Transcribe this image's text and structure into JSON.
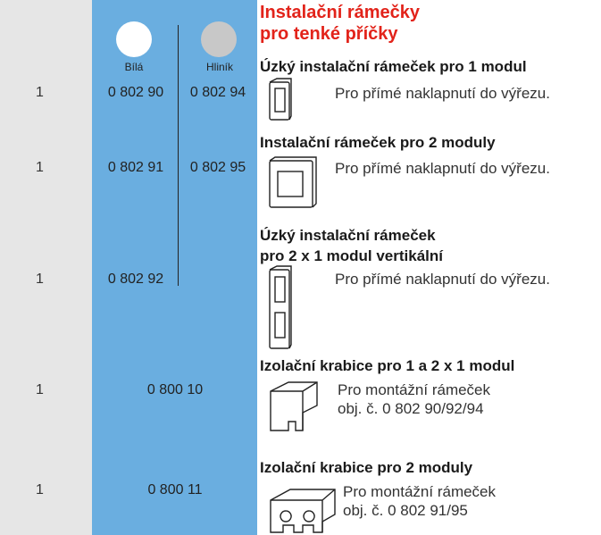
{
  "header": {
    "title_lines": [
      "Instalační rámečky",
      "pro tenké příčky"
    ]
  },
  "columns": [
    "Bílá",
    "Hliník"
  ],
  "items": [
    {
      "qty": "1",
      "codes": [
        "0 802 90",
        "0 802 94"
      ],
      "title_lines": [
        "Úzký instalační rámeček pro 1 modul"
      ],
      "description_lines": [
        "Pro přímé naklapnutí do výřezu."
      ]
    },
    {
      "qty": "1",
      "codes": [
        "0 802 91",
        "0 802 95"
      ],
      "title_lines": [
        "Instalační rámeček pro 2 moduly"
      ],
      "description_lines": [
        "Pro přímé naklapnutí do výřezu."
      ]
    },
    {
      "qty": "1",
      "codes": [
        "0 802 92"
      ],
      "title_lines": [
        "Úzký instalační rámeček",
        "pro 2 x 1 modul vertikální"
      ],
      "description_lines": [
        "Pro přímé naklapnutí do výřezu."
      ]
    },
    {
      "qty": "1",
      "codes": [
        "0 800 10"
      ],
      "title_lines": [
        "Izolační krabice pro 1 a 2 x 1 modul"
      ],
      "description_lines": [
        "Pro montážní rámeček",
        "obj. č. 0 802 90/92/94"
      ]
    },
    {
      "qty": "1",
      "codes": [
        "0 800 11"
      ],
      "title_lines": [
        "Izolační krabice pro 2 moduly"
      ],
      "description_lines": [
        "Pro montážní rámeček",
        "obj. č. 0 802 91/95"
      ]
    }
  ]
}
